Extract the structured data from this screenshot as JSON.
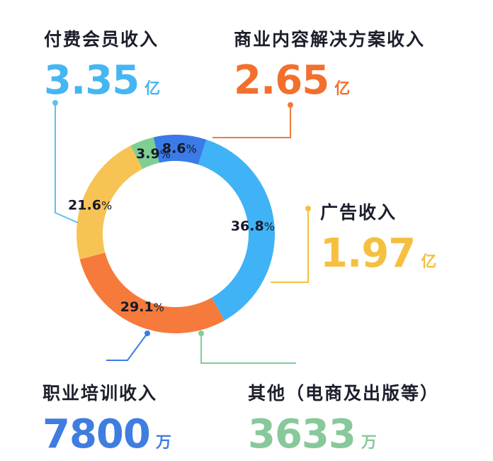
{
  "chart_data": {
    "type": "pie",
    "categories": [
      "付费会员收入",
      "商业内容解决方案收入",
      "广告收入",
      "其他（电商及出版等）",
      "职业培训收入"
    ],
    "values": [
      36.8,
      29.1,
      21.6,
      3.9,
      8.6
    ],
    "unit": "%",
    "colors": [
      "#3fb3f5",
      "#f57a3c",
      "#f8c355",
      "#7fcf93",
      "#3b7be8"
    ],
    "callouts": [
      {
        "label": "付费会员收入",
        "amount": "3.35",
        "unit": "亿",
        "color": "#46b6f3"
      },
      {
        "label": "商业内容解决方案收入",
        "amount": "2.65",
        "unit": "亿",
        "color": "#f36f2e"
      },
      {
        "label": "广告收入",
        "amount": "1.97",
        "unit": "亿",
        "color": "#f5c040"
      },
      {
        "label": "职业培训收入",
        "amount": "7800",
        "unit": "万",
        "color": "#3f7de0"
      },
      {
        "label": "其他（电商及出版等）",
        "amount": "3633",
        "unit": "万",
        "color": "#87c99a"
      }
    ]
  }
}
